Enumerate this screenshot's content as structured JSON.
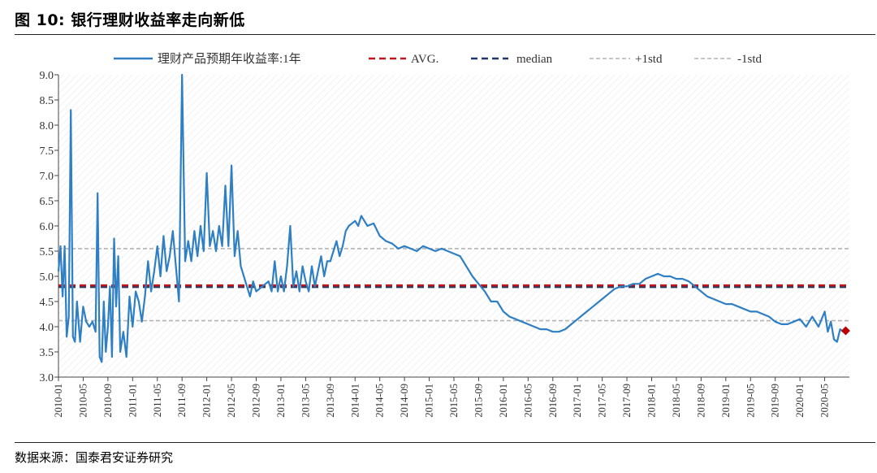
{
  "figure": {
    "title": "图 10:  银行理财收益率走向新低",
    "source": "数据来源：国泰君安证券研究"
  },
  "chart_data": {
    "type": "line",
    "title": "",
    "xlabel": "",
    "ylabel": "",
    "ylim": [
      3.0,
      9.0
    ],
    "yticks": [
      "3.0",
      "3.5",
      "4.0",
      "4.5",
      "5.0",
      "5.5",
      "6.0",
      "6.5",
      "7.0",
      "7.5",
      "8.0",
      "8.5",
      "9.0"
    ],
    "xticks": [
      "2010-01",
      "2010-05",
      "2010-09",
      "2011-01",
      "2011-05",
      "2011-09",
      "2012-01",
      "2012-05",
      "2012-09",
      "2013-01",
      "2013-05",
      "2013-09",
      "2014-01",
      "2014-05",
      "2014-09",
      "2015-01",
      "2015-05",
      "2015-09",
      "2016-01",
      "2016-05",
      "2016-09",
      "2017-01",
      "2017-05",
      "2017-09",
      "2018-01",
      "2018-05",
      "2018-09",
      "2019-01",
      "2019-05",
      "2019-09",
      "2020-01",
      "2020-05"
    ],
    "legend_position": "top",
    "series": [
      {
        "name": "理财产品预期年收益率:1年",
        "color": "#2e7fc4",
        "style": "solid",
        "points": [
          [
            "2010-01",
            5.1
          ],
          [
            "2010-01",
            5.6
          ],
          [
            "2010-01",
            4.6
          ],
          [
            "2010-02",
            5.6
          ],
          [
            "2010-02",
            3.8
          ],
          [
            "2010-02",
            4.2
          ],
          [
            "2010-03",
            8.3
          ],
          [
            "2010-03",
            3.8
          ],
          [
            "2010-03",
            3.7
          ],
          [
            "2010-04",
            4.5
          ],
          [
            "2010-04",
            3.7
          ],
          [
            "2010-05",
            4.4
          ],
          [
            "2010-05",
            4.1
          ],
          [
            "2010-06",
            4.0
          ],
          [
            "2010-06",
            4.1
          ],
          [
            "2010-07",
            3.9
          ],
          [
            "2010-07",
            6.65
          ],
          [
            "2010-07",
            3.4
          ],
          [
            "2010-08",
            3.3
          ],
          [
            "2010-08",
            4.5
          ],
          [
            "2010-08",
            3.5
          ],
          [
            "2010-09",
            4.0
          ],
          [
            "2010-09",
            4.8
          ],
          [
            "2010-09",
            3.4
          ],
          [
            "2010-10",
            5.75
          ],
          [
            "2010-10",
            4.4
          ],
          [
            "2010-10",
            5.4
          ],
          [
            "2010-11",
            3.5
          ],
          [
            "2010-11",
            3.9
          ],
          [
            "2010-12",
            3.4
          ],
          [
            "2010-12",
            4.6
          ],
          [
            "2011-01",
            4.0
          ],
          [
            "2011-01",
            4.7
          ],
          [
            "2011-02",
            4.5
          ],
          [
            "2011-02",
            4.1
          ],
          [
            "2011-03",
            4.6
          ],
          [
            "2011-03",
            5.3
          ],
          [
            "2011-04",
            4.7
          ],
          [
            "2011-04",
            5.1
          ],
          [
            "2011-05",
            5.6
          ],
          [
            "2011-05",
            5.0
          ],
          [
            "2011-06",
            5.8
          ],
          [
            "2011-06",
            5.1
          ],
          [
            "2011-07",
            5.4
          ],
          [
            "2011-07",
            5.9
          ],
          [
            "2011-08",
            5.2
          ],
          [
            "2011-08",
            4.5
          ],
          [
            "2011-09",
            9.0
          ],
          [
            "2011-09",
            5.3
          ],
          [
            "2011-10",
            5.7
          ],
          [
            "2011-10",
            5.3
          ],
          [
            "2011-11",
            5.9
          ],
          [
            "2011-11",
            5.4
          ],
          [
            "2011-12",
            6.0
          ],
          [
            "2011-12",
            5.5
          ],
          [
            "2012-01",
            7.05
          ],
          [
            "2012-01",
            5.6
          ],
          [
            "2012-02",
            5.9
          ],
          [
            "2012-02",
            5.5
          ],
          [
            "2012-03",
            6.0
          ],
          [
            "2012-03",
            5.6
          ],
          [
            "2012-04",
            6.8
          ],
          [
            "2012-04",
            5.6
          ],
          [
            "2012-05",
            7.2
          ],
          [
            "2012-05",
            5.4
          ],
          [
            "2012-06",
            5.9
          ],
          [
            "2012-06",
            5.2
          ],
          [
            "2012-07",
            5.0
          ],
          [
            "2012-08",
            4.6
          ],
          [
            "2012-08",
            4.9
          ],
          [
            "2012-09",
            4.7
          ],
          [
            "2012-10",
            4.8
          ],
          [
            "2012-11",
            4.9
          ],
          [
            "2012-11",
            4.7
          ],
          [
            "2012-12",
            5.3
          ],
          [
            "2012-12",
            4.7
          ],
          [
            "2013-01",
            5.0
          ],
          [
            "2013-01",
            4.7
          ],
          [
            "2013-02",
            5.2
          ],
          [
            "2013-02",
            6.0
          ],
          [
            "2013-03",
            4.8
          ],
          [
            "2013-03",
            5.1
          ],
          [
            "2013-04",
            4.7
          ],
          [
            "2013-04",
            5.2
          ],
          [
            "2013-05",
            4.9
          ],
          [
            "2013-05",
            4.7
          ],
          [
            "2013-06",
            5.2
          ],
          [
            "2013-06",
            4.8
          ],
          [
            "2013-07",
            5.1
          ],
          [
            "2013-07",
            5.4
          ],
          [
            "2013-08",
            5.0
          ],
          [
            "2013-08",
            5.3
          ],
          [
            "2013-09",
            5.3
          ],
          [
            "2013-10",
            5.7
          ],
          [
            "2013-10",
            5.4
          ],
          [
            "2013-11",
            5.6
          ],
          [
            "2013-11",
            5.9
          ],
          [
            "2013-12",
            6.0
          ],
          [
            "2014-01",
            6.1
          ],
          [
            "2014-01",
            6.0
          ],
          [
            "2014-02",
            6.2
          ],
          [
            "2014-03",
            6.0
          ],
          [
            "2014-04",
            6.05
          ],
          [
            "2014-05",
            5.8
          ],
          [
            "2014-06",
            5.7
          ],
          [
            "2014-07",
            5.65
          ],
          [
            "2014-08",
            5.55
          ],
          [
            "2014-09",
            5.6
          ],
          [
            "2014-10",
            5.55
          ],
          [
            "2014-11",
            5.5
          ],
          [
            "2014-12",
            5.6
          ],
          [
            "2015-01",
            5.55
          ],
          [
            "2015-02",
            5.5
          ],
          [
            "2015-03",
            5.55
          ],
          [
            "2015-04",
            5.5
          ],
          [
            "2015-05",
            5.45
          ],
          [
            "2015-06",
            5.4
          ],
          [
            "2015-07",
            5.2
          ],
          [
            "2015-08",
            5.0
          ],
          [
            "2015-09",
            4.85
          ],
          [
            "2015-10",
            4.7
          ],
          [
            "2015-11",
            4.5
          ],
          [
            "2015-12",
            4.5
          ],
          [
            "2016-01",
            4.3
          ],
          [
            "2016-02",
            4.2
          ],
          [
            "2016-03",
            4.15
          ],
          [
            "2016-04",
            4.1
          ],
          [
            "2016-05",
            4.05
          ],
          [
            "2016-06",
            4.0
          ],
          [
            "2016-07",
            3.95
          ],
          [
            "2016-08",
            3.95
          ],
          [
            "2016-09",
            3.9
          ],
          [
            "2016-10",
            3.9
          ],
          [
            "2016-11",
            3.95
          ],
          [
            "2016-12",
            4.05
          ],
          [
            "2017-01",
            4.15
          ],
          [
            "2017-02",
            4.25
          ],
          [
            "2017-03",
            4.35
          ],
          [
            "2017-04",
            4.45
          ],
          [
            "2017-05",
            4.55
          ],
          [
            "2017-06",
            4.65
          ],
          [
            "2017-07",
            4.75
          ],
          [
            "2017-08",
            4.8
          ],
          [
            "2017-09",
            4.8
          ],
          [
            "2017-10",
            4.85
          ],
          [
            "2017-11",
            4.85
          ],
          [
            "2017-12",
            4.95
          ],
          [
            "2018-01",
            5.0
          ],
          [
            "2018-02",
            5.05
          ],
          [
            "2018-03",
            5.0
          ],
          [
            "2018-04",
            5.0
          ],
          [
            "2018-05",
            4.95
          ],
          [
            "2018-06",
            4.95
          ],
          [
            "2018-07",
            4.9
          ],
          [
            "2018-08",
            4.8
          ],
          [
            "2018-09",
            4.7
          ],
          [
            "2018-10",
            4.6
          ],
          [
            "2018-11",
            4.55
          ],
          [
            "2018-12",
            4.5
          ],
          [
            "2019-01",
            4.45
          ],
          [
            "2019-02",
            4.45
          ],
          [
            "2019-03",
            4.4
          ],
          [
            "2019-04",
            4.35
          ],
          [
            "2019-05",
            4.3
          ],
          [
            "2019-06",
            4.3
          ],
          [
            "2019-07",
            4.25
          ],
          [
            "2019-08",
            4.2
          ],
          [
            "2019-09",
            4.1
          ],
          [
            "2019-10",
            4.05
          ],
          [
            "2019-11",
            4.05
          ],
          [
            "2019-12",
            4.1
          ],
          [
            "2020-01",
            4.15
          ],
          [
            "2020-02",
            4.0
          ],
          [
            "2020-03",
            4.2
          ],
          [
            "2020-04",
            4.0
          ],
          [
            "2020-05",
            4.3
          ],
          [
            "2020-05",
            3.9
          ],
          [
            "2020-06",
            4.1
          ],
          [
            "2020-06",
            3.75
          ],
          [
            "2020-07",
            3.7
          ],
          [
            "2020-07",
            3.95
          ],
          [
            "2020-08",
            3.9
          ]
        ]
      },
      {
        "name": "AVG.",
        "color": "#c0171f",
        "style": "dashed",
        "value": 4.82
      },
      {
        "name": "median",
        "color": "#1f3864",
        "style": "dashed",
        "value": 4.79
      },
      {
        "name": "+1std",
        "color": "#b4b4b4",
        "style": "dashed",
        "value": 5.55
      },
      {
        "name": "-1std",
        "color": "#b4b4b4",
        "style": "dashed",
        "value": 4.12
      }
    ],
    "markers": [
      {
        "x": "2020-08",
        "y": 3.92,
        "color": "#c00000",
        "shape": "diamond"
      }
    ]
  }
}
